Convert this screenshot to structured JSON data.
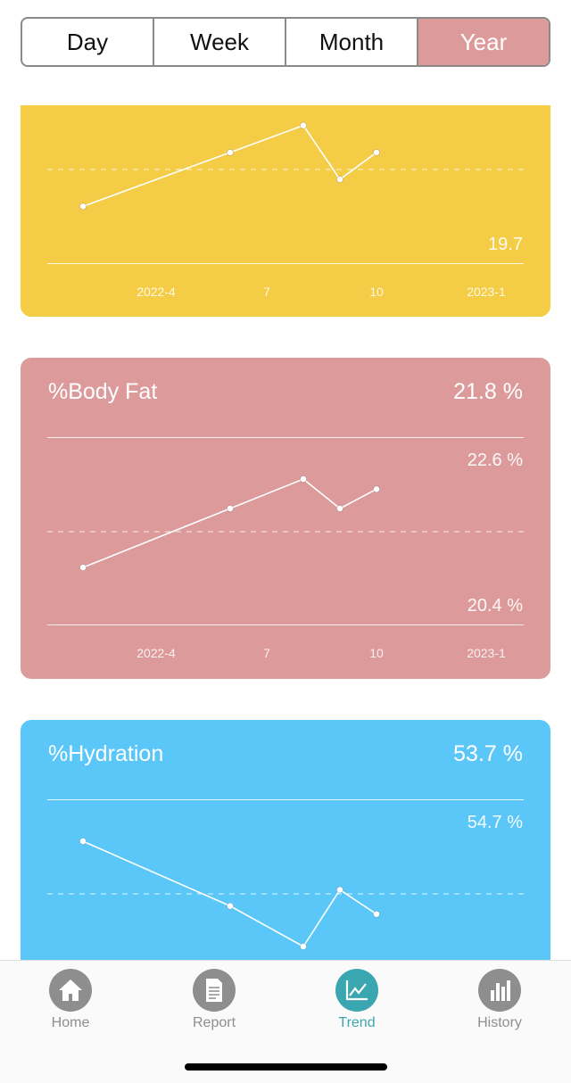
{
  "range_tabs": [
    {
      "label": "Day",
      "active": false
    },
    {
      "label": "Week",
      "active": false
    },
    {
      "label": "Month",
      "active": false
    },
    {
      "label": "Year",
      "active": true
    }
  ],
  "x_ticks": [
    "2022-4",
    "7",
    "10",
    "2023-1"
  ],
  "cards": {
    "first": {
      "color": "#f4cc45",
      "min_label": "19.7",
      "values": [
        0.25,
        0.65,
        0.85,
        0.45,
        0.65
      ]
    },
    "body_fat": {
      "color": "#dd9a9b",
      "title": "%Body Fat",
      "current": "21.8 %",
      "max_label": "22.6 %",
      "min_label": "20.4 %",
      "values": [
        20.6,
        21.3,
        21.65,
        21.3,
        21.53
      ]
    },
    "hydration": {
      "color": "#5bc7f8",
      "title": "%Hydration",
      "current": "53.7 %",
      "max_label": "54.7 %",
      "values": [
        54.05,
        53.65,
        53.4,
        53.75,
        53.6
      ]
    }
  },
  "tabbar": [
    {
      "label": "Home",
      "icon": "home-icon",
      "active": false
    },
    {
      "label": "Report",
      "icon": "report-icon",
      "active": false
    },
    {
      "label": "Trend",
      "icon": "trend-icon",
      "active": true
    },
    {
      "label": "History",
      "icon": "history-icon",
      "active": false
    }
  ]
}
